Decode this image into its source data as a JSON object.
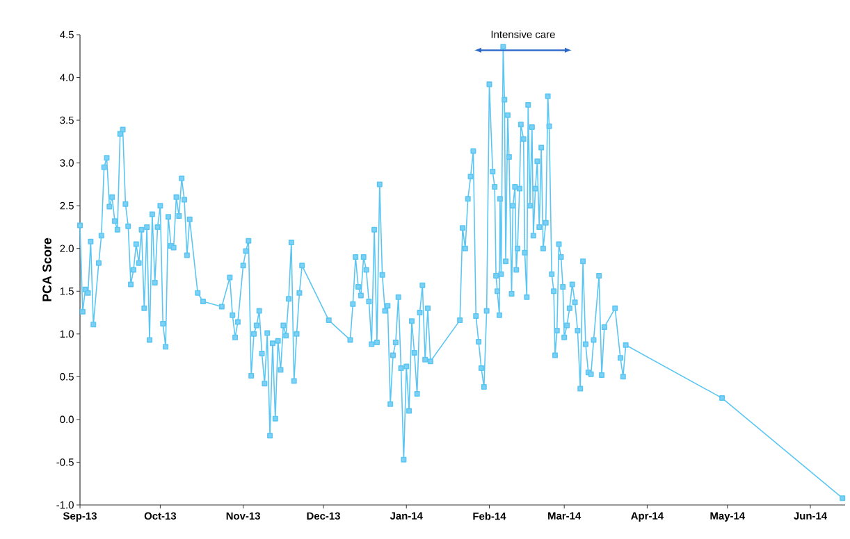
{
  "chart_data": {
    "type": "line",
    "ylabel": "PCA Score",
    "marker": "square",
    "line_style": "solid",
    "xlim": [
      "2013-09-01",
      "2014-06-14"
    ],
    "ylim": [
      -1,
      4.5
    ],
    "xticks": [
      {
        "value": "2013-09-01",
        "label": "Sep-13"
      },
      {
        "value": "2013-10-01",
        "label": "Oct-13"
      },
      {
        "value": "2013-11-01",
        "label": "Nov-13"
      },
      {
        "value": "2013-12-01",
        "label": "Dec-13"
      },
      {
        "value": "2014-01-01",
        "label": "Jan-14"
      },
      {
        "value": "2014-02-01",
        "label": "Feb-14"
      },
      {
        "value": "2014-03-01",
        "label": "Mar-14"
      },
      {
        "value": "2014-04-01",
        "label": "Apr-14"
      },
      {
        "value": "2014-05-01",
        "label": "May-14"
      },
      {
        "value": "2014-06-01",
        "label": "Jun-14"
      }
    ],
    "yticks": [
      {
        "value": -1,
        "label": "-1.0"
      },
      {
        "value": -0.5,
        "label": "-0.5"
      },
      {
        "value": 0,
        "label": "0.0"
      },
      {
        "value": 0.5,
        "label": "0.5"
      },
      {
        "value": 1,
        "label": "1.0"
      },
      {
        "value": 1.5,
        "label": "1.5"
      },
      {
        "value": 2,
        "label": "2.0"
      },
      {
        "value": 2.5,
        "label": "2.5"
      },
      {
        "value": 3,
        "label": "3.0"
      },
      {
        "value": 3.5,
        "label": "3.5"
      },
      {
        "value": 4,
        "label": "4.0"
      },
      {
        "value": 4.5,
        "label": "4.5"
      }
    ],
    "annotations": [
      "Intensive care"
    ],
    "series": [
      {
        "color": "#5cc6f2",
        "x": [
          "2013-09-01",
          "2013-09-02",
          "2013-09-03",
          "2013-09-04",
          "2013-09-05",
          "2013-09-06",
          "2013-09-08",
          "2013-09-09",
          "2013-09-10",
          "2013-09-11",
          "2013-09-12",
          "2013-09-13",
          "2013-09-14",
          "2013-09-15",
          "2013-09-16",
          "2013-09-17",
          "2013-09-18",
          "2013-09-19",
          "2013-09-20",
          "2013-09-21",
          "2013-09-22",
          "2013-09-23",
          "2013-09-24",
          "2013-09-25",
          "2013-09-26",
          "2013-09-27",
          "2013-09-28",
          "2013-09-29",
          "2013-09-30",
          "2013-10-01",
          "2013-10-02",
          "2013-10-03",
          "2013-10-04",
          "2013-10-05",
          "2013-10-06",
          "2013-10-07",
          "2013-10-08",
          "2013-10-09",
          "2013-10-10",
          "2013-10-11",
          "2013-10-12",
          "2013-10-15",
          "2013-10-17",
          "2013-10-24",
          "2013-10-27",
          "2013-10-28",
          "2013-10-29",
          "2013-10-30",
          "2013-11-01",
          "2013-11-02",
          "2013-11-03",
          "2013-11-04",
          "2013-11-05",
          "2013-11-06",
          "2013-11-07",
          "2013-11-08",
          "2013-11-09",
          "2013-11-10",
          "2013-11-11",
          "2013-11-12",
          "2013-11-13",
          "2013-11-14",
          "2013-11-15",
          "2013-11-16",
          "2013-11-17",
          "2013-11-18",
          "2013-11-19",
          "2013-11-20",
          "2013-11-21",
          "2013-11-22",
          "2013-11-23",
          "2013-12-03",
          "2013-12-11",
          "2013-12-12",
          "2013-12-13",
          "2013-12-14",
          "2013-12-15",
          "2013-12-16",
          "2013-12-17",
          "2013-12-18",
          "2013-12-19",
          "2013-12-20",
          "2013-12-21",
          "2013-12-22",
          "2013-12-23",
          "2013-12-24",
          "2013-12-25",
          "2013-12-26",
          "2013-12-27",
          "2013-12-28",
          "2013-12-29",
          "2013-12-30",
          "2013-12-31",
          "2014-01-01",
          "2014-01-02",
          "2014-01-03",
          "2014-01-04",
          "2014-01-05",
          "2014-01-06",
          "2014-01-07",
          "2014-01-08",
          "2014-01-09",
          "2014-01-10",
          "2014-01-21",
          "2014-01-22",
          "2014-01-23",
          "2014-01-24",
          "2014-01-25",
          "2014-01-26",
          "2014-01-27",
          "2014-01-28",
          "2014-01-29",
          "2014-01-30",
          "2014-01-31",
          "2014-02-01",
          "2014-02-02T06:00",
          "2014-02-03",
          "2014-02-03T12:00",
          "2014-02-04",
          "2014-02-04T18:00",
          "2014-02-05",
          "2014-02-05T10:00",
          "2014-02-06T04:00",
          "2014-02-06T16:00",
          "2014-02-07T03:00",
          "2014-02-07T21:00",
          "2014-02-08T09:00",
          "2014-02-09T08:00",
          "2014-02-09T20:00",
          "2014-02-10T14:00",
          "2014-02-11T02:00",
          "2014-02-11T13:00",
          "2014-02-12T07:00",
          "2014-02-12T19:00",
          "2014-02-13T19:00",
          "2014-02-14T06:00",
          "2014-02-15",
          "2014-02-15T12:00",
          "2014-02-16T05:00",
          "2014-02-16T23:00",
          "2014-02-17T11:00",
          "2014-02-18T05:00",
          "2014-02-18T22:00",
          "2014-02-19T16:00",
          "2014-02-20T10:00",
          "2014-02-21T03:00",
          "2014-02-22T03:00",
          "2014-02-22T21:00",
          "2014-02-23T09:00",
          "2014-02-24T08:00",
          "2014-02-25T02:00",
          "2014-02-25T14:00",
          "2014-02-26T07:00",
          "2014-02-27",
          "2014-02-27T19:00",
          "2014-02-28T12:00",
          "2014-03-01",
          "2014-03-02",
          "2014-03-03",
          "2014-03-04",
          "2014-03-05",
          "2014-03-06",
          "2014-03-07",
          "2014-03-08",
          "2014-03-09",
          "2014-03-10",
          "2014-03-11",
          "2014-03-12",
          "2014-03-14",
          "2014-03-15",
          "2014-03-16",
          "2014-03-20",
          "2014-03-22",
          "2014-03-23",
          "2014-03-24",
          "2014-04-29",
          "2014-06-13"
        ],
        "values": [
          2.27,
          1.26,
          1.52,
          1.48,
          2.08,
          1.11,
          1.83,
          2.15,
          2.95,
          3.06,
          2.49,
          2.6,
          2.32,
          2.22,
          3.34,
          3.39,
          2.52,
          2.26,
          1.58,
          1.75,
          2.05,
          1.83,
          2.22,
          1.3,
          2.25,
          0.93,
          2.4,
          1.6,
          2.25,
          2.5,
          1.12,
          0.85,
          2.37,
          2.03,
          2.01,
          2.6,
          2.38,
          2.82,
          2.57,
          1.92,
          2.34,
          1.48,
          1.38,
          1.32,
          1.66,
          1.22,
          0.96,
          1.14,
          1.8,
          1.97,
          2.09,
          0.51,
          1.0,
          1.1,
          1.27,
          0.77,
          0.42,
          1.01,
          -0.19,
          0.89,
          0.01,
          0.92,
          0.58,
          1.1,
          0.98,
          1.41,
          2.07,
          0.45,
          1.0,
          1.48,
          1.8,
          1.16,
          0.93,
          1.35,
          1.9,
          1.55,
          1.45,
          1.9,
          1.75,
          1.38,
          0.88,
          2.22,
          0.9,
          2.75,
          1.69,
          1.27,
          1.33,
          0.18,
          0.75,
          0.9,
          1.43,
          0.6,
          -0.47,
          0.62,
          0.1,
          1.15,
          0.78,
          0.3,
          1.25,
          1.57,
          0.7,
          1.3,
          0.68,
          1.16,
          2.24,
          2.0,
          2.58,
          2.84,
          3.14,
          1.21,
          0.91,
          0.6,
          0.38,
          1.27,
          3.92,
          2.9,
          2.72,
          1.68,
          1.5,
          1.22,
          2.58,
          1.7,
          4.36,
          3.74,
          1.85,
          3.56,
          3.07,
          1.47,
          2.5,
          2.72,
          1.75,
          2.0,
          2.7,
          3.45,
          3.28,
          1.95,
          1.43,
          3.68,
          2.5,
          3.42,
          2.15,
          2.7,
          3.02,
          2.25,
          3.18,
          2.0,
          2.3,
          3.78,
          3.43,
          1.7,
          1.5,
          0.75,
          1.04,
          2.05,
          1.9,
          1.55,
          0.96,
          1.1,
          1.3,
          1.58,
          1.37,
          1.04,
          0.36,
          1.85,
          0.88,
          0.55,
          0.53,
          0.93,
          1.68,
          0.52,
          1.08,
          1.3,
          0.72,
          0.5,
          0.87,
          0.25,
          -0.92
        ]
      }
    ]
  }
}
